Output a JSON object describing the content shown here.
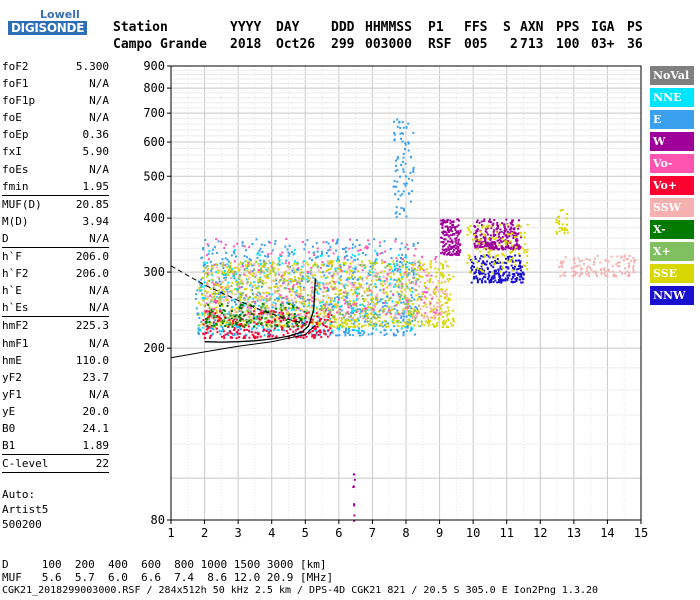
{
  "logo": {
    "line1": "Lowell",
    "line2": "DIGISONDE"
  },
  "header": {
    "row1": [
      "Station",
      "YYYY",
      "DAY",
      "DDD",
      "HHMMSS",
      "P1",
      "FFS",
      "S",
      "AXN",
      "PPS",
      "IGA",
      "PS"
    ],
    "row2": [
      "Campo Grande",
      "2018",
      "Oct26",
      "299",
      "003000",
      "RSF",
      "005",
      "2",
      "713",
      "100",
      "03+",
      "36"
    ]
  },
  "params": [
    {
      "name": "foF2",
      "value": "5.300"
    },
    {
      "name": "foF1",
      "value": "N/A"
    },
    {
      "name": "foF1p",
      "value": "N/A"
    },
    {
      "name": "foE",
      "value": "N/A"
    },
    {
      "name": "foEp",
      "value": "0.36"
    },
    {
      "name": "fxI",
      "value": "5.90"
    },
    {
      "name": "foEs",
      "value": "N/A"
    },
    {
      "name": "fmin",
      "value": "1.95",
      "sep": true
    },
    {
      "name": "MUF(D)",
      "value": "20.85"
    },
    {
      "name": "M(D)",
      "value": "3.94"
    },
    {
      "name": "D",
      "value": "N/A",
      "sep": true
    },
    {
      "name": "h`F",
      "value": "206.0"
    },
    {
      "name": "h`F2",
      "value": "206.0"
    },
    {
      "name": "h`E",
      "value": "N/A"
    },
    {
      "name": "h`Es",
      "value": "N/A",
      "sep": true
    },
    {
      "name": "hmF2",
      "value": "225.3"
    },
    {
      "name": "hmF1",
      "value": "N/A"
    },
    {
      "name": "hmE",
      "value": "110.0"
    },
    {
      "name": "yF2",
      "value": "23.7"
    },
    {
      "name": "yF1",
      "value": "N/A"
    },
    {
      "name": "yE",
      "value": "20.0"
    },
    {
      "name": "B0",
      "value": "24.1"
    },
    {
      "name": "B1",
      "value": "1.89",
      "sep": true
    },
    {
      "name": "C-level",
      "value": "22",
      "sep": true
    }
  ],
  "auto": {
    "line1": "Auto:",
    "line2": "Artist5",
    "line3": "500200"
  },
  "legend": [
    {
      "label": "NoVal",
      "color": "#808080",
      "text": "#ffffff"
    },
    {
      "label": "NNE",
      "color": "#00e5ff",
      "text": "#ffffff"
    },
    {
      "label": "E",
      "color": "#3aa0ee",
      "text": "#ffffff"
    },
    {
      "label": "W",
      "color": "#a0009a",
      "text": "#ffffff"
    },
    {
      "label": "Vo-",
      "color": "#ff55b0",
      "text": "#ffffff"
    },
    {
      "label": "Vo+",
      "color": "#ff0030",
      "text": "#ffffff"
    },
    {
      "label": "SSW",
      "color": "#f5b0b0",
      "text": "#ffffff"
    },
    {
      "label": "X-",
      "color": "#007a00",
      "text": "#ffffff"
    },
    {
      "label": "X+",
      "color": "#80c060",
      "text": "#ffffff"
    },
    {
      "label": "SSE",
      "color": "#d8d800",
      "text": "#ffffff"
    },
    {
      "label": "NNW",
      "color": "#1a10d0",
      "text": "#ffffff"
    }
  ],
  "footer": {
    "d_label": "D",
    "d_values": [
      "100",
      "200",
      "400",
      "600",
      "800",
      "1000",
      "1500",
      "3000"
    ],
    "d_unit": "[km]",
    "muf_label": "MUF",
    "muf_values": [
      "5.6",
      "5.7",
      "6.0",
      "6.6",
      "7.4",
      "8.6",
      "12.0",
      "20.9"
    ],
    "muf_unit": "[MHz]",
    "info": "CGK21_2018299003000.RSF / 284x512h 50 kHz 2.5 km / DPS-4D CGK21 821 / 20.5 S 305.0 E Ion2Png 1.3.20"
  },
  "chart_data": {
    "type": "scatter",
    "xlim": [
      1,
      15
    ],
    "ylim": [
      80,
      900
    ],
    "y_scale": "log",
    "x_ticks": [
      "1",
      "2",
      "3",
      "4",
      "5",
      "6",
      "7",
      "8",
      "9",
      "10",
      "11",
      "12",
      "13",
      "14",
      "15"
    ],
    "y_ticks": [
      "80",
      "200",
      "300",
      "400",
      "500",
      "600",
      "700",
      "800",
      "900"
    ],
    "grid": true,
    "legend_position": "right",
    "clusters": [
      {
        "color": "#3aa0ee",
        "x": [
          1.7,
          8.4
        ],
        "y": [
          215,
          360
        ],
        "n": 700
      },
      {
        "color": "#00e5ff",
        "x": [
          1.8,
          8.2
        ],
        "y": [
          220,
          340
        ],
        "n": 300
      },
      {
        "color": "#d8d800",
        "x": [
          1.8,
          9.4
        ],
        "y": [
          225,
          320
        ],
        "n": 900
      },
      {
        "color": "#f5b0b0",
        "x": [
          2.0,
          9.2
        ],
        "y": [
          235,
          320
        ],
        "n": 400
      },
      {
        "color": "#ff0030",
        "x": [
          1.9,
          5.8
        ],
        "y": [
          212,
          245
        ],
        "n": 250
      },
      {
        "color": "#ff55b0",
        "x": [
          2.0,
          9.0
        ],
        "y": [
          240,
          360
        ],
        "n": 200
      },
      {
        "color": "#007a00",
        "x": [
          2.0,
          5.0
        ],
        "y": [
          225,
          255
        ],
        "n": 120
      },
      {
        "color": "#80c060",
        "x": [
          2.0,
          8.5
        ],
        "y": [
          230,
          320
        ],
        "n": 200
      },
      {
        "color": "#a0009a",
        "x": [
          9.0,
          9.6
        ],
        "y": [
          330,
          400
        ],
        "n": 160
      },
      {
        "color": "#a0009a",
        "x": [
          10.0,
          11.4
        ],
        "y": [
          340,
          400
        ],
        "n": 260
      },
      {
        "color": "#1a10d0",
        "x": [
          9.9,
          11.5
        ],
        "y": [
          285,
          330
        ],
        "n": 220
      },
      {
        "color": "#d8d800",
        "x": [
          9.8,
          11.6
        ],
        "y": [
          300,
          390
        ],
        "n": 120
      },
      {
        "color": "#f5b0b0",
        "x": [
          12.5,
          14.8
        ],
        "y": [
          295,
          330
        ],
        "n": 120
      },
      {
        "color": "#3aa0ee",
        "x": [
          7.6,
          8.2
        ],
        "y": [
          400,
          680
        ],
        "n": 80
      },
      {
        "color": "#a0009a",
        "x": [
          6.4,
          6.45
        ],
        "y": [
          80,
          105
        ],
        "n": 10
      },
      {
        "color": "#d8d800",
        "x": [
          12.4,
          12.8
        ],
        "y": [
          370,
          420
        ],
        "n": 25
      }
    ],
    "trace_curve": {
      "x": [
        2.0,
        2.5,
        3.0,
        3.5,
        4.0,
        4.5,
        4.9,
        5.1,
        5.25,
        5.3
      ],
      "y": [
        207,
        206.5,
        207,
        208,
        210,
        213,
        218,
        225,
        245,
        290
      ]
    },
    "lower_curve": {
      "x": [
        1.0,
        2.0,
        3.0,
        4.0,
        5.0,
        5.3
      ],
      "y": [
        190,
        196,
        202,
        207,
        215,
        226
      ]
    },
    "dashed_curve": {
      "x": [
        1.0,
        2.0,
        3.0,
        3.5,
        4.0,
        4.5,
        5.0
      ],
      "y": [
        310,
        280,
        258,
        248,
        240,
        233,
        228
      ]
    }
  }
}
